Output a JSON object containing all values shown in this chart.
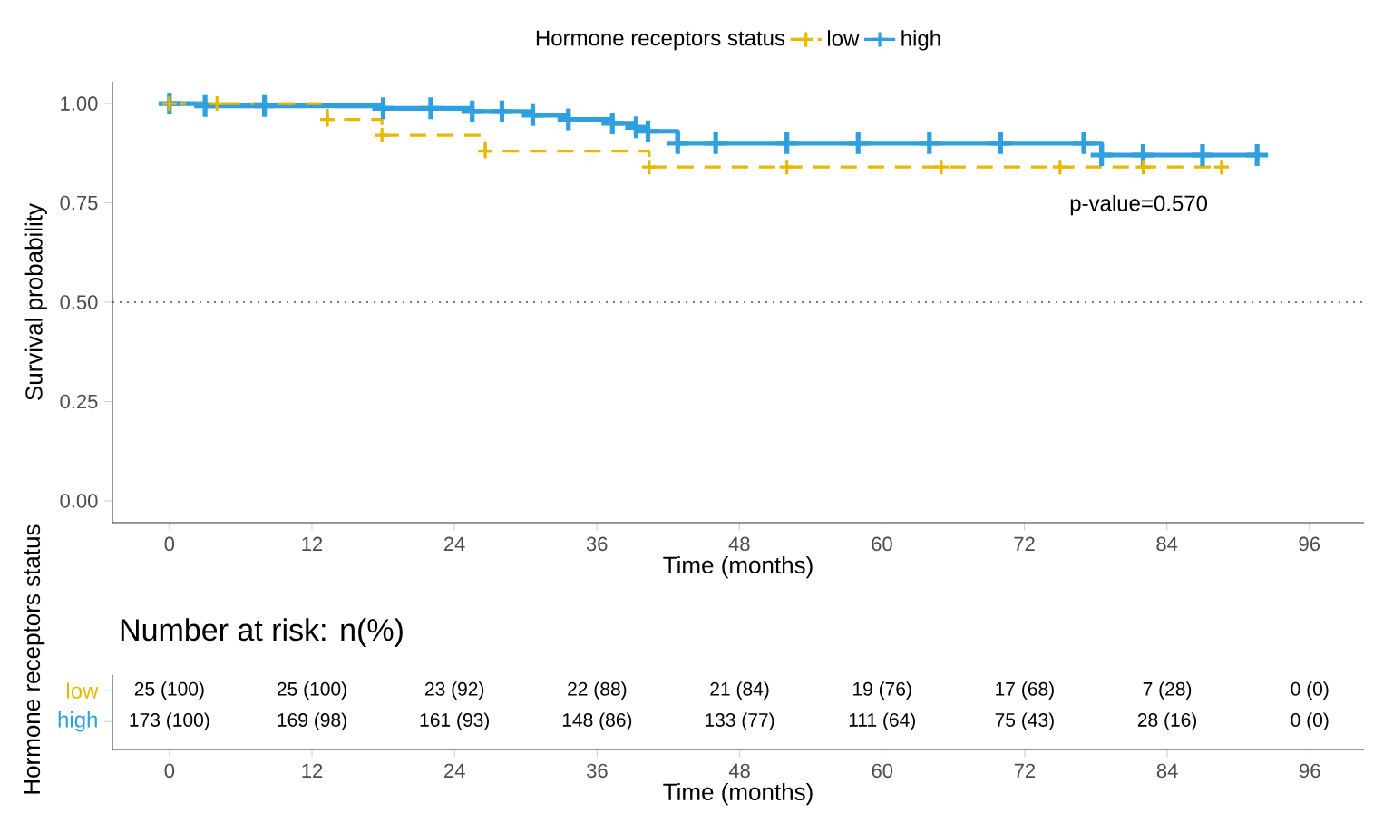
{
  "chart_data": [
    {
      "type": "step",
      "legend_title": "Hormone receptors status",
      "xlabel": "Time (months)",
      "ylabel": "Survival probability",
      "xlim": [
        -4.8,
        100.6
      ],
      "ylim": [
        -0.055,
        1.055
      ],
      "xticks": [
        0,
        12,
        24,
        36,
        48,
        60,
        72,
        84,
        96
      ],
      "yticks": [
        {
          "value": 0,
          "label": "0.00"
        },
        {
          "value": 0.25,
          "label": "0.25"
        },
        {
          "value": 0.5,
          "label": "0.50"
        },
        {
          "value": 0.75,
          "label": "0.75"
        },
        {
          "value": 1,
          "label": "1.00"
        }
      ],
      "series": [
        {
          "name": "low",
          "color": "#e7b800",
          "line_style": "dashed",
          "x": [
            0,
            4,
            13.3,
            17.9,
            26.6,
            40.4,
            52,
            65,
            75,
            82,
            88.6
          ],
          "values": [
            1,
            1,
            0.96,
            0.92,
            0.88,
            0.84,
            0.84,
            0.84,
            0.84,
            0.84,
            0.84
          ]
        },
        {
          "name": "high",
          "color": "#2e9fdf",
          "line_style": "solid",
          "x": [
            0,
            3,
            8,
            18,
            22,
            25.5,
            28,
            30.6,
            33.6,
            37.3,
            39.3,
            40.3,
            42.8,
            46,
            52,
            58,
            64,
            70,
            77,
            78.5,
            82,
            87,
            91.6
          ],
          "values": [
            1,
            0.994,
            0.994,
            0.988,
            0.988,
            0.98,
            0.98,
            0.971,
            0.96,
            0.95,
            0.94,
            0.93,
            0.9,
            0.9,
            0.9,
            0.9,
            0.9,
            0.9,
            0.9,
            0.87,
            0.87,
            0.87,
            0.87
          ]
        }
      ],
      "ref_lines": [
        {
          "axis": "y",
          "value": 0.5,
          "line_style": "dotted",
          "color": "#4d4d4d"
        }
      ],
      "annotations": [
        "p-value=0.570"
      ],
      "marker": "cross",
      "legend": "top",
      "grid": false
    },
    {
      "type": "heatmap",
      "title": "Number at risk: n(%)",
      "xlabel": "Time (months)",
      "ylabel": "Hormone receptors status",
      "categories": [
        "0",
        "12",
        "24",
        "36",
        "48",
        "60",
        "72",
        "84",
        "96"
      ],
      "y_categories": [
        "low",
        "high"
      ],
      "colors": [
        "#e7b800",
        "#2e9fdf"
      ],
      "cells": [
        [
          null,
          null,
          null,
          null,
          null,
          null,
          null,
          null,
          null
        ],
        [
          null,
          null,
          null,
          null,
          null,
          null,
          null,
          null,
          null
        ]
      ],
      "cell_labels": [
        [
          "25 (100)",
          "25 (100)",
          "23 (92)",
          "22 (88)",
          "21 (84)",
          "19 (76)",
          "17 (68)",
          "7 (28)",
          "0 (0)"
        ],
        [
          "173 (100)",
          "169 (98)",
          "161 (93)",
          "148 (86)",
          "133 (77)",
          "111 (64)",
          "75 (43)",
          "28 (16)",
          "0 (0)"
        ]
      ]
    }
  ]
}
